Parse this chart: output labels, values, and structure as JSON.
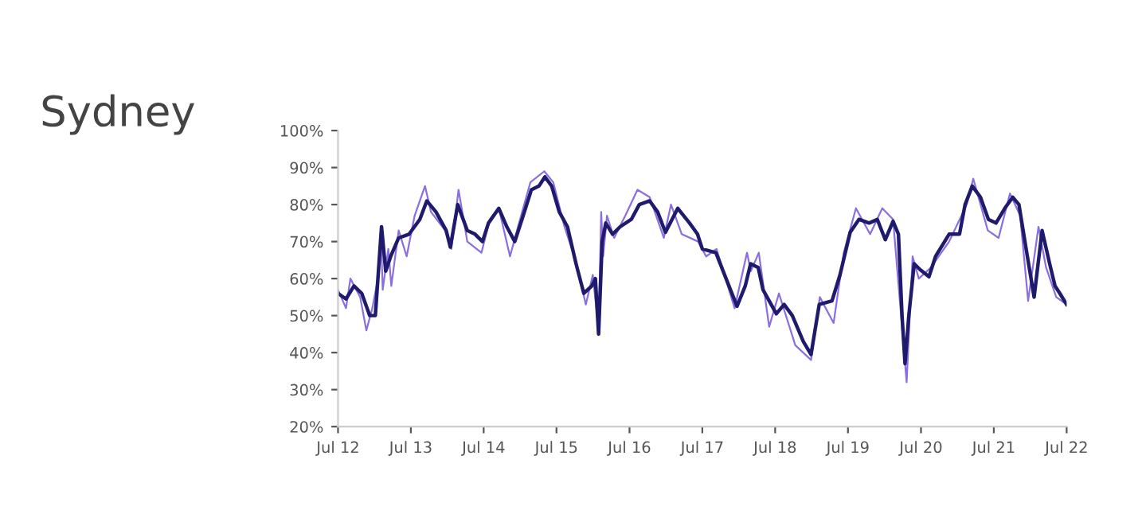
{
  "chart_data": {
    "type": "line",
    "title": "Sydney",
    "xlim": [
      "2012-07-01",
      "2022-07-01"
    ],
    "xticks": [
      {
        "value": "2012-07-01",
        "label": "Jul 12"
      },
      {
        "value": "2013-07-01",
        "label": "Jul 13"
      },
      {
        "value": "2014-07-01",
        "label": "Jul 14"
      },
      {
        "value": "2015-07-01",
        "label": "Jul 15"
      },
      {
        "value": "2016-07-01",
        "label": "Jul 16"
      },
      {
        "value": "2017-07-01",
        "label": "Jul 17"
      },
      {
        "value": "2018-07-01",
        "label": "Jul 18"
      },
      {
        "value": "2019-07-01",
        "label": "Jul 19"
      },
      {
        "value": "2020-07-01",
        "label": "Jul 20"
      },
      {
        "value": "2021-07-01",
        "label": "Jul 21"
      },
      {
        "value": "2022-07-01",
        "label": "Jul 22"
      }
    ],
    "ylim": [
      20,
      100
    ],
    "yticks": [
      {
        "value": 20,
        "label": "20%"
      },
      {
        "value": 30,
        "label": "30%"
      },
      {
        "value": 40,
        "label": "40%"
      },
      {
        "value": 50,
        "label": "50%"
      },
      {
        "value": 60,
        "label": "60%"
      },
      {
        "value": 70,
        "label": "70%"
      },
      {
        "value": 80,
        "label": "80%"
      },
      {
        "value": 90,
        "label": "90%"
      },
      {
        "value": 100,
        "label": "100%"
      }
    ],
    "grid": false,
    "marker": "none",
    "line_style": "solid",
    "series": [
      {
        "color": "#8b6fe0",
        "x": [
          "2012-07-01",
          "2012-08-10",
          "2012-09-01",
          "2012-10-20",
          "2012-11-20",
          "2012-12-20",
          "2013-01-20",
          "2013-02-01",
          "2013-02-10",
          "2013-03-10",
          "2013-03-25",
          "2013-05-01",
          "2013-06-10",
          "2013-07-20",
          "2013-09-10",
          "2013-10-10",
          "2013-12-20",
          "2014-01-20",
          "2014-02-25",
          "2014-04-10",
          "2014-06-20",
          "2014-08-01",
          "2014-09-15",
          "2014-11-10",
          "2014-12-20",
          "2015-02-20",
          "2015-05-01",
          "2015-06-15",
          "2015-08-10",
          "2015-10-10",
          "2015-11-25",
          "2015-12-30",
          "2016-01-28",
          "2016-02-10",
          "2016-02-20",
          "2016-03-10",
          "2016-04-15",
          "2016-06-10",
          "2016-08-10",
          "2016-10-10",
          "2016-12-20",
          "2017-01-25",
          "2017-03-20",
          "2017-06-10",
          "2017-07-20",
          "2017-09-10",
          "2017-12-10",
          "2018-02-10",
          "2018-03-01",
          "2018-04-10",
          "2018-06-01",
          "2018-07-20",
          "2018-10-10",
          "2018-12-28",
          "2019-02-10",
          "2019-04-20",
          "2019-06-10",
          "2019-08-10",
          "2019-10-20",
          "2019-12-20",
          "2020-02-12",
          "2020-04-20",
          "2020-05-20",
          "2020-06-20",
          "2020-08-20",
          "2020-11-19",
          "2021-02-15",
          "2021-03-20",
          "2021-06-01",
          "2021-07-25",
          "2021-09-20",
          "2021-11-10",
          "2021-12-20",
          "2022-02-10",
          "2022-03-20",
          "2022-05-10",
          "2022-07-01"
        ],
        "values": [
          57,
          52,
          60,
          55,
          46,
          52,
          61,
          72,
          57,
          68,
          58,
          73,
          66,
          77,
          85,
          78,
          73,
          68,
          84,
          70,
          67,
          76,
          79,
          66,
          74,
          86,
          89,
          86,
          74,
          64,
          53,
          61,
          46,
          78,
          66,
          77,
          71,
          77,
          84,
          82,
          71,
          80,
          72,
          70,
          66,
          68,
          52,
          67,
          62,
          67,
          47,
          56,
          42,
          38,
          55,
          48,
          67,
          79,
          72,
          79,
          76,
          32,
          66,
          60,
          63,
          70,
          80,
          87,
          73,
          71,
          83,
          77,
          54,
          74,
          63,
          55,
          53
        ]
      },
      {
        "color": "#1f1a6b",
        "x": [
          "2012-07-01",
          "2012-08-10",
          "2012-09-19",
          "2012-10-28",
          "2012-12-07",
          "2013-01-04",
          "2013-02-04",
          "2013-02-25",
          "2013-03-22",
          "2013-05-01",
          "2013-06-22",
          "2013-08-15",
          "2013-09-19",
          "2013-11-04",
          "2013-12-25",
          "2014-01-15",
          "2014-02-21",
          "2014-04-10",
          "2014-05-19",
          "2014-06-25",
          "2014-07-25",
          "2014-09-15",
          "2014-10-25",
          "2014-12-04",
          "2015-01-15",
          "2015-02-25",
          "2015-04-04",
          "2015-05-04",
          "2015-06-07",
          "2015-07-15",
          "2015-08-25",
          "2015-10-07",
          "2015-11-15",
          "2015-12-25",
          "2016-01-12",
          "2016-01-28",
          "2016-02-15",
          "2016-03-04",
          "2016-04-07",
          "2016-05-15",
          "2016-07-10",
          "2016-08-19",
          "2016-10-10",
          "2016-11-19",
          "2016-12-28",
          "2017-02-28",
          "2017-04-28",
          "2017-06-07",
          "2017-07-01",
          "2017-09-07",
          "2017-10-28",
          "2017-12-22",
          "2018-02-01",
          "2018-02-28",
          "2018-04-07",
          "2018-05-01",
          "2018-07-07",
          "2018-08-15",
          "2018-09-25",
          "2018-11-19",
          "2018-12-28",
          "2019-02-07",
          "2019-04-12",
          "2019-05-22",
          "2019-07-12",
          "2019-08-25",
          "2019-10-15",
          "2019-11-25",
          "2020-01-04",
          "2020-02-12",
          "2020-03-10",
          "2020-03-28",
          "2020-04-12",
          "2020-05-01",
          "2020-05-28",
          "2020-06-25",
          "2020-08-10",
          "2020-09-12",
          "2020-11-19",
          "2021-01-10",
          "2021-02-07",
          "2021-03-15",
          "2021-04-25",
          "2021-06-04",
          "2021-07-12",
          "2021-08-25",
          "2021-10-04",
          "2021-11-04",
          "2021-12-10",
          "2022-01-19",
          "2022-02-28",
          "2022-04-07",
          "2022-05-04",
          "2022-05-28",
          "2022-07-01"
        ],
        "values": [
          56,
          54.5,
          58,
          56,
          50,
          50,
          74,
          62,
          66,
          71,
          72,
          76,
          81,
          78,
          73,
          68.5,
          80,
          73,
          72,
          70,
          75,
          79,
          74,
          70,
          77,
          84,
          85,
          87.5,
          85,
          78,
          74,
          64,
          56,
          58,
          60,
          45,
          70,
          75,
          72,
          74,
          76,
          80,
          81,
          78,
          72.5,
          79,
          75,
          72,
          68,
          67,
          60,
          52.5,
          58,
          64,
          63,
          57,
          50.5,
          53,
          50,
          43,
          39.5,
          53,
          54,
          61,
          72.5,
          76,
          75,
          76,
          70.5,
          75.5,
          72,
          50,
          37,
          50,
          64,
          62.5,
          60.5,
          66,
          72,
          72,
          80,
          85,
          82,
          76,
          75,
          79,
          82,
          80,
          68,
          55,
          73,
          64,
          58,
          56,
          53
        ]
      }
    ]
  }
}
